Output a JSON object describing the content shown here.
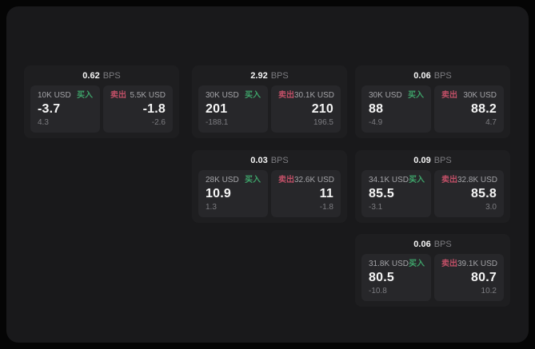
{
  "theme": {
    "bg": "#050505",
    "window_bg": "#19191b",
    "card_bg": "#1e1e20",
    "panel_bg": "#27272a",
    "text_primary": "#f5f5f5",
    "text_muted": "#7c7c80",
    "buy_color": "#3ea269",
    "sell_color": "#bf4f66"
  },
  "labels": {
    "bps_unit": "BPS",
    "buy": "买入",
    "sell": "卖出"
  },
  "cards": [
    {
      "col": 0,
      "row": 0,
      "bps": "0.62",
      "buy": {
        "size": "10K USD",
        "value": "-3.7",
        "delta": "4.3"
      },
      "sell": {
        "size": "5.5K USD",
        "value": "-1.8",
        "delta": "-2.6"
      }
    },
    {
      "col": 1,
      "row": 0,
      "bps": "2.92",
      "buy": {
        "size": "30K USD",
        "value": "201",
        "delta": "-188.1"
      },
      "sell": {
        "size": "30.1K USD",
        "value": "210",
        "delta": "196.5"
      }
    },
    {
      "col": 2,
      "row": 0,
      "bps": "0.06",
      "buy": {
        "size": "30K USD",
        "value": "88",
        "delta": "-4.9"
      },
      "sell": {
        "size": "30K USD",
        "value": "88.2",
        "delta": "4.7"
      }
    },
    {
      "col": 1,
      "row": 1,
      "bps": "0.03",
      "buy": {
        "size": "28K USD",
        "value": "10.9",
        "delta": "1.3"
      },
      "sell": {
        "size": "32.6K USD",
        "value": "11",
        "delta": "-1.8"
      }
    },
    {
      "col": 2,
      "row": 1,
      "bps": "0.09",
      "buy": {
        "size": "34.1K USD",
        "value": "85.5",
        "delta": "-3.1"
      },
      "sell": {
        "size": "32.8K USD",
        "value": "85.8",
        "delta": "3.0"
      }
    },
    {
      "col": 2,
      "row": 2,
      "bps": "0.06",
      "buy": {
        "size": "31.8K USD",
        "value": "80.5",
        "delta": "-10.8"
      },
      "sell": {
        "size": "39.1K USD",
        "value": "80.7",
        "delta": "10.2"
      }
    }
  ]
}
